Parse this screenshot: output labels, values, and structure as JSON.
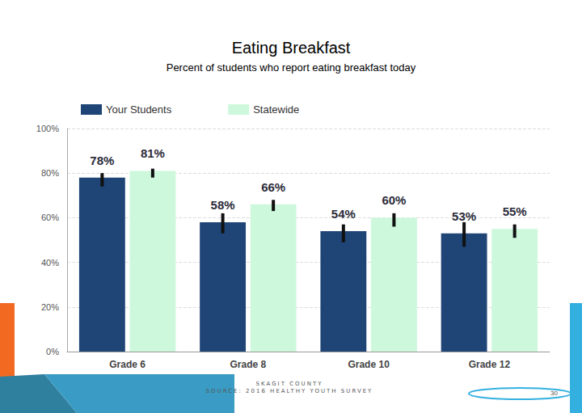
{
  "chart_data": {
    "type": "bar",
    "title": "Eating Breakfast",
    "subtitle": "Percent of students who report eating breakfast today",
    "categories": [
      "Grade 6",
      "Grade 8",
      "Grade 10",
      "Grade 12"
    ],
    "series": [
      {
        "name": "Your Students",
        "color": "#1f4476",
        "values": [
          78,
          58,
          54,
          53
        ],
        "value_labels": [
          "78%",
          "58%",
          "54%",
          "53%"
        ],
        "errors": [
          [
            74,
            80
          ],
          [
            53,
            62
          ],
          [
            49,
            57
          ],
          [
            47,
            58
          ]
        ]
      },
      {
        "name": "Statewide",
        "color": "#cdf8dc",
        "values": [
          81,
          66,
          60,
          55
        ],
        "value_labels": [
          "81%",
          "66%",
          "60%",
          "55%"
        ],
        "errors": [
          [
            78,
            82
          ],
          [
            63,
            68
          ],
          [
            56,
            62
          ],
          [
            51,
            57
          ]
        ]
      }
    ],
    "ylim": [
      0,
      100
    ],
    "yticks": [
      {
        "value": 0,
        "label": "0%"
      },
      {
        "value": 20,
        "label": "20%"
      },
      {
        "value": 40,
        "label": "40%"
      },
      {
        "value": 60,
        "label": "60%"
      },
      {
        "value": 80,
        "label": "80%"
      },
      {
        "value": 100,
        "label": "100%"
      }
    ],
    "grid": true,
    "legend": "upper left",
    "data_labels": true
  },
  "footer": [
    "SKAGIT COUNTY",
    "SOURCE: 2016 HEALTHY YOUTH SURVEY"
  ],
  "page_number": "30"
}
